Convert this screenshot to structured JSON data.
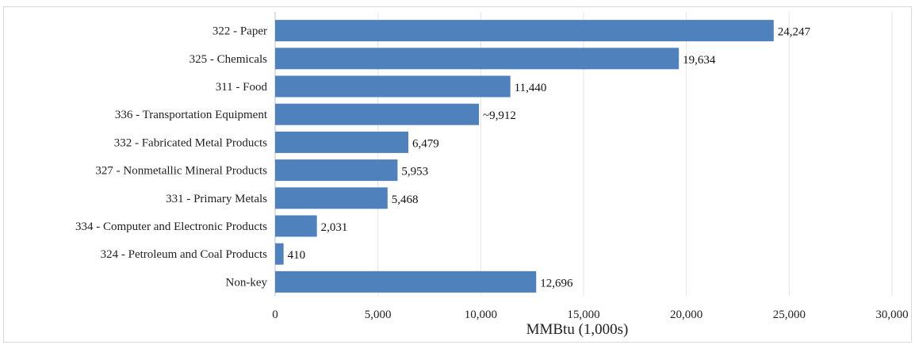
{
  "chart_data": {
    "type": "bar",
    "orientation": "horizontal",
    "title": "",
    "categories": [
      "322 - Paper",
      "325 - Chemicals",
      "311 - Food",
      "336 - Transportation Equipment",
      "332 - Fabricated Metal Products",
      "327 - Nonmetallic Mineral Products",
      "331 - Primary Metals",
      "334 - Computer and Electronic Products",
      "324 - Petroleum and Coal Products",
      "Non-key"
    ],
    "values": [
      24247,
      19634,
      11440,
      9912,
      6479,
      5953,
      5468,
      2031,
      410,
      12696
    ],
    "value_labels": [
      "24,247",
      "19,634",
      "11,440",
      "~9,912",
      "6,479",
      "5,953",
      "5,468",
      "2,031",
      "410",
      "12,696"
    ],
    "xlabel": "MMBtu (1,000s)",
    "ylabel": "",
    "xlim": [
      0,
      30000
    ],
    "xticks": [
      0,
      5000,
      10000,
      15000,
      20000,
      25000,
      30000
    ],
    "xtick_labels": [
      "0",
      "5,000",
      "10,000",
      "15,000",
      "20,000",
      "25,000",
      "30,000"
    ],
    "grid": true,
    "bar_color": "#4f81bd"
  }
}
